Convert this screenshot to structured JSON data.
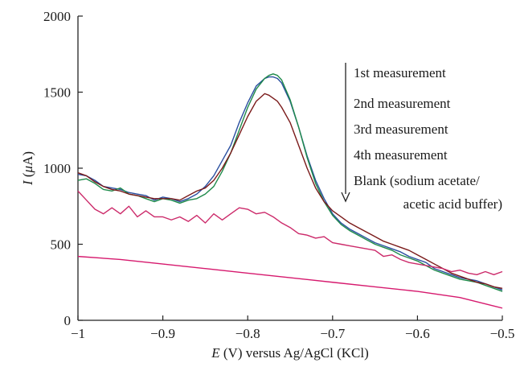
{
  "chart_data": {
    "type": "line",
    "xlabel": {
      "italic": "E",
      "rest": " (V) versus Ag/AgCl (KCl)"
    },
    "ylabel": {
      "italic": "I",
      "rest_open": " (",
      "mu": "μ",
      "rest_close": "A)"
    },
    "xlim": [
      -1.0,
      -0.5
    ],
    "ylim": [
      0,
      2000
    ],
    "x_ticks": [
      -1.0,
      -0.9,
      -0.8,
      -0.7,
      -0.6,
      -0.5
    ],
    "x_tick_labels": [
      "−1",
      "−0.9",
      "−0.8",
      "−0.7",
      "−0.6",
      "−0.5"
    ],
    "y_ticks": [
      0,
      500,
      1000,
      1500,
      2000
    ],
    "y_tick_labels": [
      "0",
      "500",
      "1000",
      "1500",
      "2000"
    ],
    "grid": false,
    "legend": {
      "placement": "top-right",
      "arrow": "down",
      "entries": [
        "1st measurement",
        "2nd measurement",
        "3rd measurement",
        "4th measurement",
        "Blank (sodium acetate/",
        "acetic acid buffer)"
      ]
    },
    "series": [
      {
        "color": "#2a4fa0",
        "x": [
          -1.0,
          -0.99,
          -0.98,
          -0.97,
          -0.96,
          -0.95,
          -0.94,
          -0.93,
          -0.92,
          -0.91,
          -0.9,
          -0.89,
          -0.88,
          -0.87,
          -0.86,
          -0.85,
          -0.84,
          -0.83,
          -0.82,
          -0.81,
          -0.8,
          -0.79,
          -0.78,
          -0.775,
          -0.77,
          -0.765,
          -0.76,
          -0.75,
          -0.74,
          -0.73,
          -0.72,
          -0.71,
          -0.7,
          -0.69,
          -0.68,
          -0.67,
          -0.66,
          -0.65,
          -0.64,
          -0.63,
          -0.62,
          -0.61,
          -0.6,
          -0.59,
          -0.58,
          -0.57,
          -0.56,
          -0.55,
          -0.54,
          -0.53,
          -0.52,
          -0.51,
          -0.5
        ],
        "values": [
          960,
          950,
          920,
          880,
          870,
          860,
          840,
          830,
          820,
          790,
          810,
          800,
          780,
          800,
          830,
          880,
          950,
          1050,
          1150,
          1300,
          1430,
          1540,
          1590,
          1600,
          1600,
          1590,
          1560,
          1440,
          1270,
          1080,
          920,
          800,
          700,
          640,
          600,
          570,
          540,
          510,
          490,
          470,
          450,
          420,
          400,
          380,
          340,
          320,
          300,
          280,
          270,
          260,
          240,
          220,
          200
        ]
      },
      {
        "color": "#1e8a4a",
        "x": [
          -1.0,
          -0.99,
          -0.98,
          -0.97,
          -0.96,
          -0.95,
          -0.94,
          -0.93,
          -0.92,
          -0.91,
          -0.9,
          -0.89,
          -0.88,
          -0.87,
          -0.86,
          -0.85,
          -0.84,
          -0.83,
          -0.82,
          -0.81,
          -0.8,
          -0.79,
          -0.78,
          -0.775,
          -0.77,
          -0.765,
          -0.76,
          -0.75,
          -0.74,
          -0.73,
          -0.72,
          -0.71,
          -0.7,
          -0.69,
          -0.68,
          -0.67,
          -0.66,
          -0.65,
          -0.64,
          -0.63,
          -0.62,
          -0.61,
          -0.6,
          -0.59,
          -0.58,
          -0.57,
          -0.56,
          -0.55,
          -0.54,
          -0.53,
          -0.52,
          -0.51,
          -0.5
        ],
        "values": [
          920,
          930,
          900,
          860,
          850,
          870,
          830,
          820,
          800,
          780,
          800,
          790,
          770,
          790,
          800,
          830,
          880,
          980,
          1100,
          1250,
          1400,
          1520,
          1590,
          1610,
          1620,
          1610,
          1580,
          1450,
          1270,
          1070,
          900,
          780,
          690,
          630,
          590,
          560,
          530,
          500,
          480,
          460,
          430,
          410,
          390,
          360,
          330,
          310,
          290,
          270,
          260,
          250,
          230,
          210,
          190
        ]
      },
      {
        "color": "#7a1a1a",
        "x": [
          -1.0,
          -0.99,
          -0.98,
          -0.97,
          -0.96,
          -0.95,
          -0.94,
          -0.93,
          -0.92,
          -0.91,
          -0.9,
          -0.89,
          -0.88,
          -0.87,
          -0.86,
          -0.85,
          -0.84,
          -0.83,
          -0.82,
          -0.81,
          -0.8,
          -0.79,
          -0.78,
          -0.775,
          -0.77,
          -0.765,
          -0.76,
          -0.75,
          -0.74,
          -0.73,
          -0.72,
          -0.71,
          -0.7,
          -0.69,
          -0.68,
          -0.67,
          -0.66,
          -0.65,
          -0.64,
          -0.63,
          -0.62,
          -0.61,
          -0.6,
          -0.59,
          -0.58,
          -0.57,
          -0.56,
          -0.55,
          -0.54,
          -0.53,
          -0.52,
          -0.51,
          -0.5
        ],
        "values": [
          970,
          950,
          910,
          880,
          860,
          850,
          830,
          820,
          810,
          800,
          800,
          800,
          790,
          820,
          850,
          870,
          920,
          1000,
          1100,
          1220,
          1340,
          1440,
          1490,
          1480,
          1460,
          1440,
          1400,
          1300,
          1150,
          1000,
          870,
          780,
          720,
          680,
          640,
          610,
          580,
          550,
          520,
          500,
          480,
          460,
          430,
          400,
          370,
          340,
          310,
          290,
          270,
          250,
          240,
          220,
          210
        ]
      },
      {
        "color": "#cc2a6a",
        "x": [
          -1.0,
          -0.99,
          -0.98,
          -0.97,
          -0.96,
          -0.95,
          -0.94,
          -0.93,
          -0.92,
          -0.91,
          -0.9,
          -0.89,
          -0.88,
          -0.87,
          -0.86,
          -0.85,
          -0.84,
          -0.83,
          -0.82,
          -0.81,
          -0.8,
          -0.79,
          -0.78,
          -0.77,
          -0.76,
          -0.75,
          -0.74,
          -0.73,
          -0.72,
          -0.71,
          -0.7,
          -0.69,
          -0.68,
          -0.67,
          -0.66,
          -0.65,
          -0.64,
          -0.63,
          -0.62,
          -0.61,
          -0.6,
          -0.59,
          -0.58,
          -0.57,
          -0.56,
          -0.55,
          -0.54,
          -0.53,
          -0.52,
          -0.51,
          -0.5
        ],
        "values": [
          850,
          790,
          730,
          700,
          740,
          700,
          750,
          680,
          720,
          680,
          680,
          660,
          680,
          650,
          690,
          640,
          700,
          660,
          700,
          740,
          730,
          700,
          710,
          680,
          640,
          610,
          570,
          560,
          540,
          550,
          510,
          500,
          490,
          480,
          470,
          460,
          420,
          430,
          400,
          380,
          370,
          360,
          350,
          340,
          320,
          330,
          310,
          300,
          320,
          300,
          320
        ]
      },
      {
        "color": "#d61a6e",
        "x": [
          -1.0,
          -0.95,
          -0.9,
          -0.85,
          -0.8,
          -0.75,
          -0.7,
          -0.65,
          -0.6,
          -0.55,
          -0.5
        ],
        "values": [
          420,
          400,
          370,
          340,
          310,
          280,
          250,
          220,
          190,
          150,
          80
        ]
      }
    ]
  }
}
